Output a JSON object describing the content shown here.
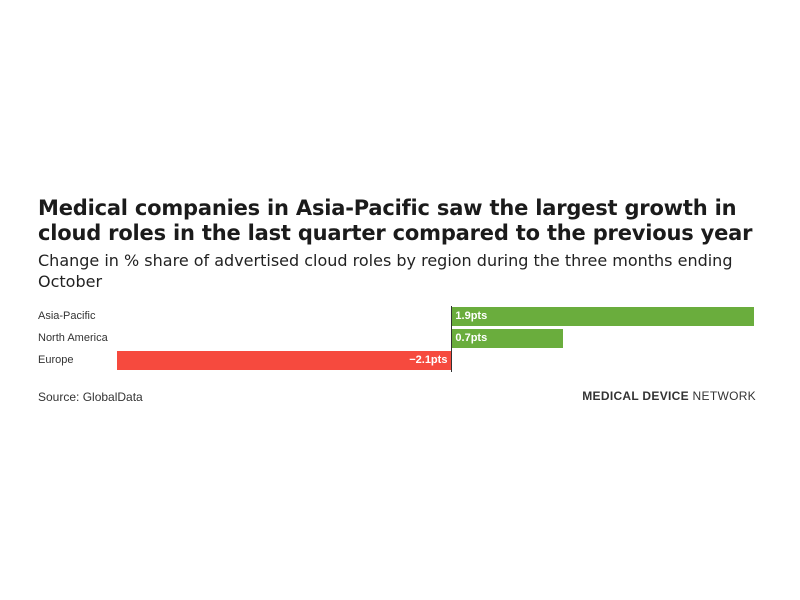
{
  "header": {
    "title": "Medical companies in Asia-Pacific saw the largest growth in cloud roles in the last quarter compared to the previous year",
    "subtitle": "Change in % share of advertised cloud roles by region during the three months ending October"
  },
  "footer": {
    "source": "Source: GlobalData",
    "brand_bold": "MEDICAL DEVICE",
    "brand_regular": " NETWORK"
  },
  "colors": {
    "positive": "#6aad3d",
    "negative": "#f64a3e"
  },
  "chart_data": {
    "type": "bar",
    "orientation": "horizontal",
    "categories": [
      "Asia-Pacific",
      "North America",
      "Europe"
    ],
    "values": [
      1.9,
      0.7,
      -2.1
    ],
    "data_labels": [
      "1.9pts",
      "0.7pts",
      "−2.1pts"
    ],
    "title": "Medical companies in Asia-Pacific saw the largest growth in cloud roles in the last quarter compared to the previous year",
    "subtitle": "Change in % share of advertised cloud roles by region during the three months ending October",
    "xlim": [
      -2.1,
      1.9
    ],
    "grid": false,
    "legend": "none"
  }
}
